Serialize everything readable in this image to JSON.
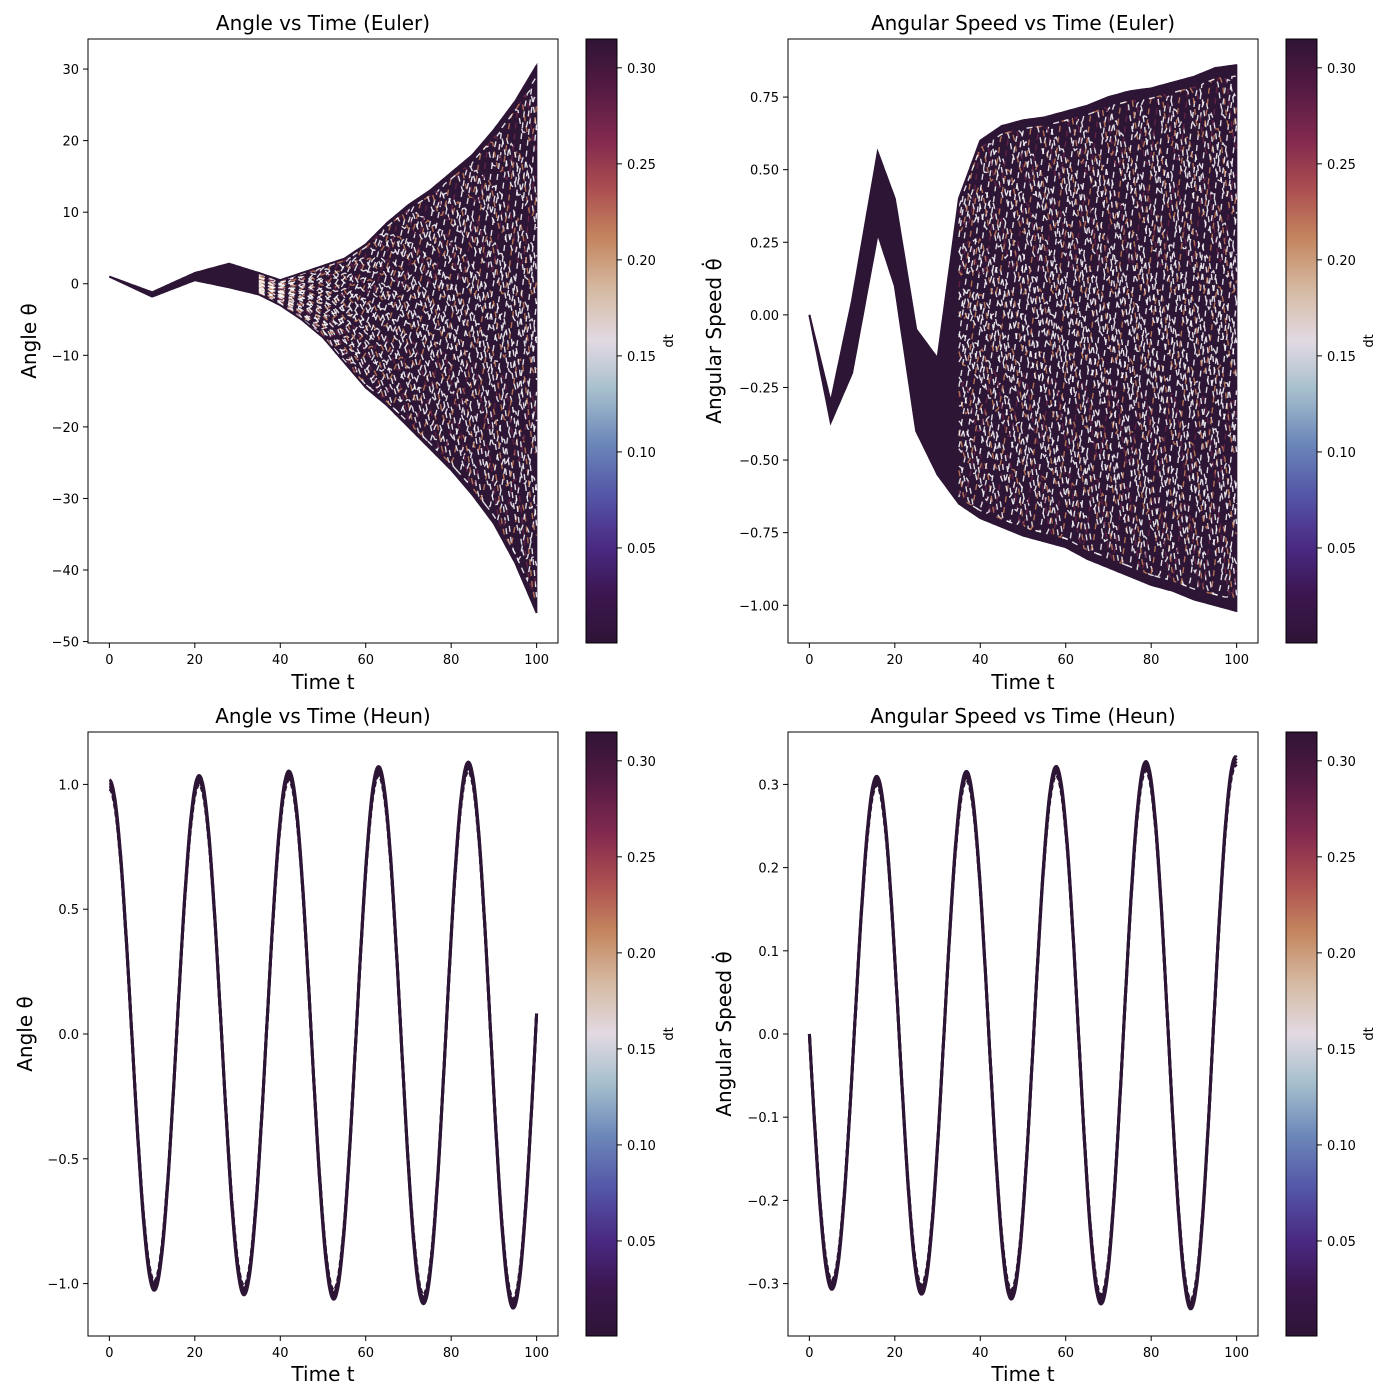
{
  "chart_data": [
    {
      "type": "line",
      "title": "Angle vs Time (Euler)",
      "xlabel": "Time t",
      "ylabel": "Angle θ",
      "xlim": [
        -5,
        105
      ],
      "ylim": [
        -50.2,
        34.2
      ],
      "xticks": [
        0,
        20,
        40,
        60,
        80,
        100
      ],
      "yticks": [
        -50,
        -40,
        -30,
        -20,
        -10,
        0,
        10,
        20,
        30
      ],
      "ytick_labels": [
        "−50",
        "−40",
        "−30",
        "−20",
        "−10",
        "0",
        "10",
        "20",
        "30"
      ],
      "colorbar": {
        "label": "dt",
        "range": [
          0.0005,
          0.315
        ],
        "ticks": [
          0.05,
          0.1,
          0.15,
          0.2,
          0.25,
          0.3
        ],
        "colormap": "twilight_shifted"
      },
      "description_of_traces": "Many dashed trajectories, one per time step dt; divergence grows with t (fan from about 0 at t=40 to between -46 and 30 at t=100)",
      "envelope": {
        "t": [
          0,
          10,
          20,
          28,
          35,
          40,
          45,
          50,
          55,
          60,
          65,
          70,
          75,
          80,
          85,
          90,
          95,
          100
        ],
        "upper": [
          1.0,
          -1.2,
          1.5,
          2.8,
          1.5,
          0.5,
          1.5,
          2.5,
          3.5,
          5.5,
          8.5,
          11.0,
          13.0,
          15.5,
          18.0,
          21.5,
          25.5,
          30.5
        ],
        "lower": [
          1.0,
          -1.8,
          0.5,
          -0.5,
          -1.5,
          -3.0,
          -5.0,
          -7.5,
          -11.0,
          -14.5,
          -17.0,
          -20.0,
          -23.0,
          -26.0,
          -29.5,
          -33.5,
          -39.0,
          -46.0
        ]
      }
    },
    {
      "type": "line",
      "title": "Angular Speed vs Time (Euler)",
      "xlabel": "Time t",
      "ylabel": "Angular Speed θ̇",
      "xlim": [
        -5,
        105
      ],
      "ylim": [
        -1.13,
        0.95
      ],
      "xticks": [
        0,
        20,
        40,
        60,
        80,
        100
      ],
      "yticks": [
        -1.0,
        -0.75,
        -0.5,
        -0.25,
        0.0,
        0.25,
        0.5,
        0.75
      ],
      "ytick_labels": [
        "−1.00",
        "−0.75",
        "−0.50",
        "−0.25",
        "0.00",
        "0.25",
        "0.50",
        "0.75"
      ],
      "colorbar": {
        "label": "dt",
        "range": [
          0.0005,
          0.315
        ],
        "ticks": [
          0.05,
          0.1,
          0.15,
          0.2,
          0.25,
          0.3
        ],
        "colormap": "twilight_shifted"
      },
      "envelope": {
        "t": [
          0,
          5,
          10,
          16,
          20,
          25,
          30,
          35,
          40,
          45,
          50,
          55,
          60,
          65,
          70,
          75,
          80,
          85,
          90,
          95,
          100
        ],
        "upper": [
          0.0,
          -0.3,
          0.05,
          0.56,
          0.4,
          -0.05,
          -0.15,
          0.4,
          0.6,
          0.65,
          0.67,
          0.68,
          0.7,
          0.72,
          0.75,
          0.77,
          0.78,
          0.8,
          0.82,
          0.85,
          0.86
        ],
        "lower": [
          0.0,
          -0.37,
          -0.2,
          0.28,
          0.1,
          -0.4,
          -0.55,
          -0.65,
          -0.7,
          -0.73,
          -0.76,
          -0.78,
          -0.8,
          -0.84,
          -0.87,
          -0.9,
          -0.93,
          -0.95,
          -0.98,
          -1.0,
          -1.02
        ]
      }
    },
    {
      "type": "line",
      "title": "Angle vs Time (Heun)",
      "xlabel": "Time t",
      "ylabel": "Angle θ",
      "xlim": [
        -5,
        105
      ],
      "ylim": [
        -1.21,
        1.21
      ],
      "xticks": [
        0,
        20,
        40,
        60,
        80,
        100
      ],
      "yticks": [
        -1.0,
        -0.5,
        0.0,
        0.5,
        1.0
      ],
      "ytick_labels": [
        "−1.0",
        "−0.5",
        "0.0",
        "0.5",
        "1.0"
      ],
      "colorbar": {
        "label": "dt",
        "range": [
          0.0005,
          0.315
        ],
        "ticks": [
          0.05,
          0.1,
          0.15,
          0.2,
          0.25,
          0.3
        ],
        "colormap": "twilight_shifted"
      },
      "oscillation": {
        "amplitude_start": 1.0,
        "amplitude_growth_per_unit_t": 0.00085,
        "period": 21.0,
        "t_end": 100,
        "value_at_t_end": -0.12
      }
    },
    {
      "type": "line",
      "title": "Angular Speed vs Time (Heun)",
      "xlabel": "Time t",
      "ylabel": "Angular Speed θ̇",
      "xlim": [
        -5,
        105
      ],
      "ylim": [
        -0.363,
        0.363
      ],
      "xticks": [
        0,
        20,
        40,
        60,
        80,
        100
      ],
      "yticks": [
        -0.3,
        -0.2,
        -0.1,
        0.0,
        0.1,
        0.2,
        0.3
      ],
      "ytick_labels": [
        "−0.3",
        "−0.2",
        "−0.1",
        "0.0",
        "0.1",
        "0.2",
        "0.3"
      ],
      "colorbar": {
        "label": "dt",
        "range": [
          0.0005,
          0.315
        ],
        "ticks": [
          0.05,
          0.1,
          0.15,
          0.2,
          0.25,
          0.3
        ],
        "colormap": "twilight_shifted"
      },
      "oscillation": {
        "amplitude_start": 0.3,
        "amplitude_growth_per_unit_t": 0.00028,
        "period": 21.0,
        "t_end": 100,
        "value_at_t_end": 0.33
      }
    }
  ],
  "colors": {
    "trace_dark": "#2d1535",
    "trace_mid": "#6b2448",
    "trace_warm": "#c8805c",
    "trace_light": "#e4dce2"
  }
}
